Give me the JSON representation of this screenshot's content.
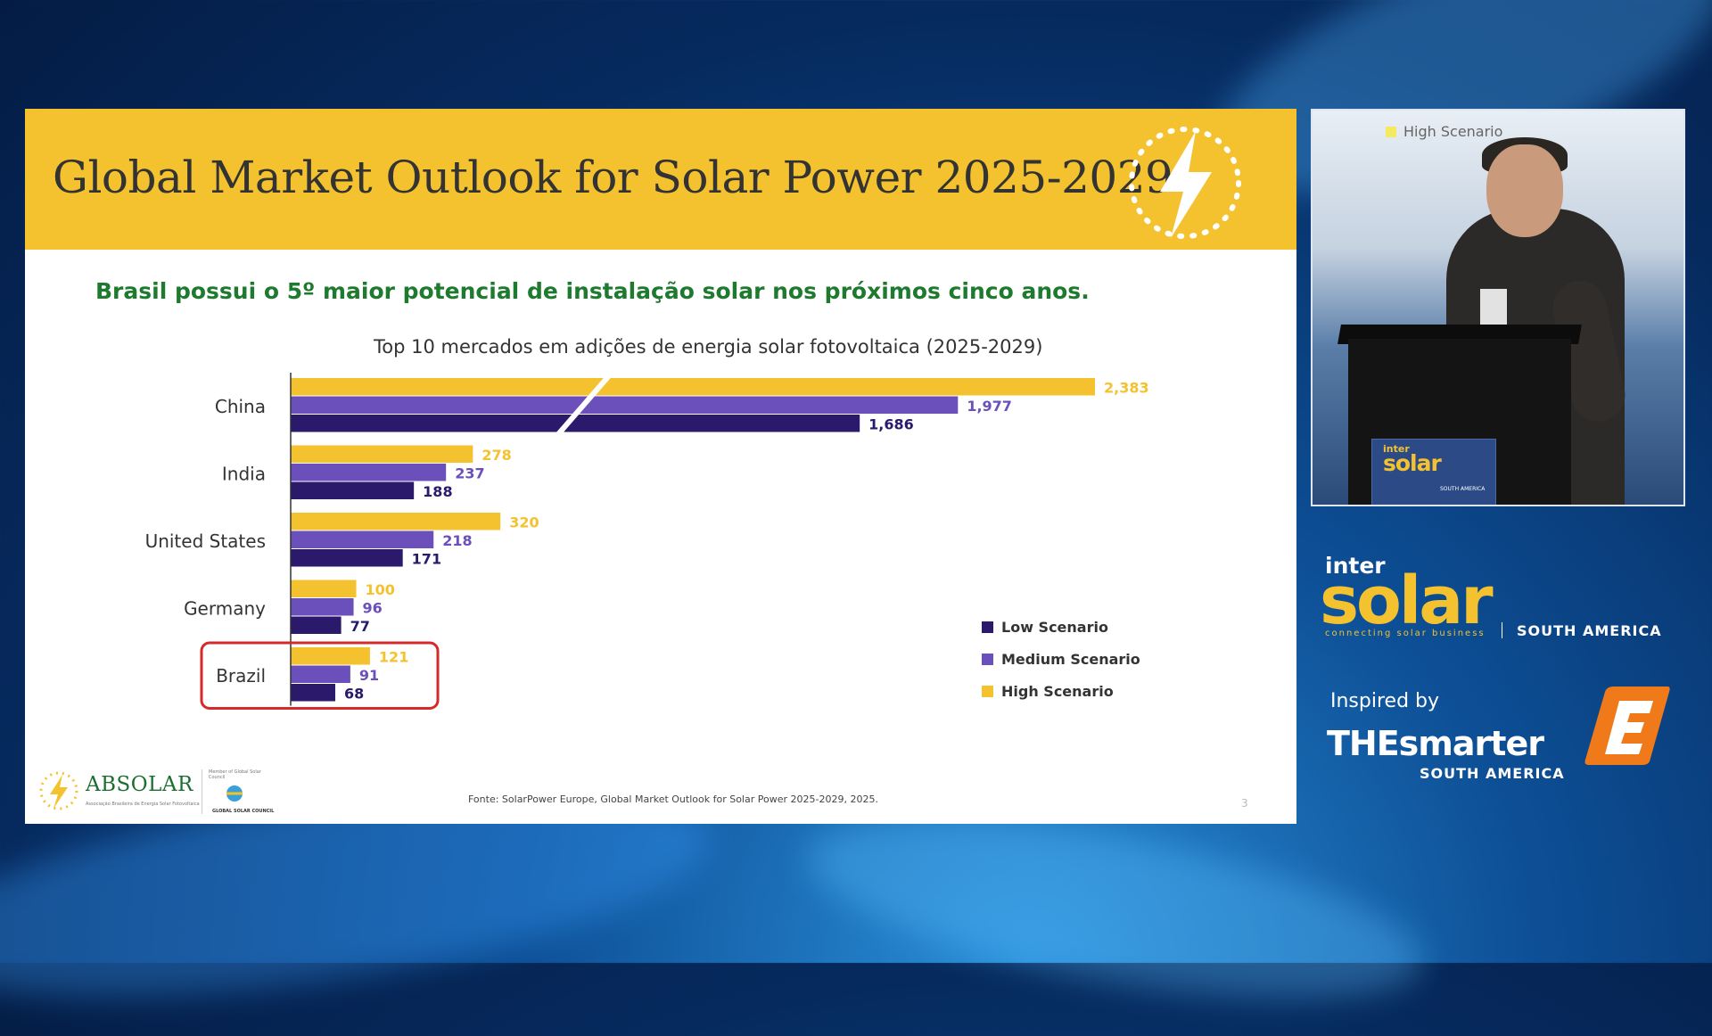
{
  "slide": {
    "title": "Global Market Outlook for Solar Power 2025-2029",
    "subtitle": "Brasil possui o 5º maior potencial de instalação solar nos próximos cinco anos.",
    "source": "Fonte: SolarPower Europe, Global Market Outlook for Solar Power 2025-2029, 2025.",
    "page_number": "3",
    "logo_absolar": "ABSOLAR",
    "logo_absolar_tagline": "Associação Brasileira de Energia Solar Fotovoltaica",
    "logo_gsc_small": "Member of Global Solar Council",
    "logo_gsc": "GLOBAL SOLAR COUNCIL"
  },
  "colors": {
    "header": "#f5c22f",
    "subtitle": "#1d7a2e",
    "low": "#2b1a6b",
    "medium": "#6b4fbb",
    "high": "#f5c22f",
    "highlight_box": "#d42a2a"
  },
  "chart_data": {
    "type": "bar",
    "orientation": "horizontal",
    "title": "Top 10 mercados em adições de energia solar fotovoltaica (2025-2029)",
    "categories": [
      "China",
      "India",
      "United States",
      "Germany",
      "Brazil"
    ],
    "series": [
      {
        "name": "High Scenario",
        "values": [
          2383,
          278,
          320,
          100,
          121
        ],
        "labels": [
          "2,383",
          "278",
          "320",
          "100",
          "121"
        ]
      },
      {
        "name": "Medium Scenario",
        "values": [
          1977,
          237,
          218,
          96,
          91
        ],
        "labels": [
          "1,977",
          "237",
          "218",
          "96",
          "91"
        ]
      },
      {
        "name": "Low Scenario",
        "values": [
          1686,
          188,
          171,
          77,
          68
        ],
        "labels": [
          "1,686",
          "188",
          "171",
          "77",
          "68"
        ]
      }
    ],
    "legend": [
      "Low Scenario",
      "Medium Scenario",
      "High Scenario"
    ],
    "legend_position": "right",
    "axis_break": true,
    "highlighted_category": "Brazil"
  },
  "camera": {
    "legend_text": "High Scenario",
    "podium_inter": "inter",
    "podium_solar": "solar",
    "podium_sa": "SOUTH AMERICA"
  },
  "branding": {
    "intersolar_inter": "inter",
    "intersolar_solar": "solar",
    "intersolar_tagline": "connecting solar business",
    "intersolar_region": "SOUTH AMERICA",
    "smarter_inspired": "Inspired by",
    "smarter_name": "THEsmarter",
    "smarter_region": "SOUTH AMERICA"
  }
}
